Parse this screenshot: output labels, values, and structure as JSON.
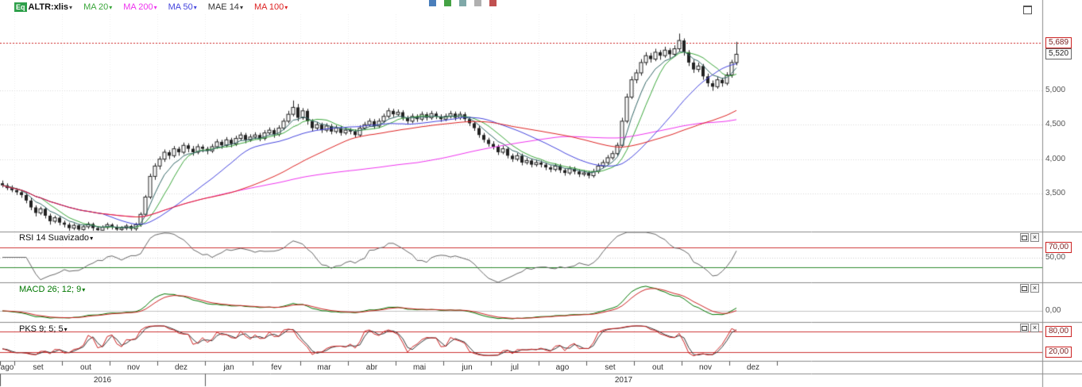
{
  "toolbar": {
    "instrument_type": "Eq",
    "ticker": "ALTR:xlis",
    "indicators": [
      {
        "label": "MA 20",
        "color": "#3aa63a"
      },
      {
        "label": "MA 200",
        "color": "#ee33ee"
      },
      {
        "label": "MA 50",
        "color": "#4444dd"
      },
      {
        "label": "MAE 14",
        "color": "#333333"
      },
      {
        "label": "MA 100",
        "color": "#dd2222"
      }
    ],
    "mini_icons": [
      "#4a7ebb",
      "#44a244",
      "#7fa8a8",
      "#b0b0b0",
      "#c05050"
    ]
  },
  "panels": {
    "rsi": {
      "title": "RSI 14 Suavizado"
    },
    "macd": {
      "title": "MACD 26; 12; 9"
    },
    "pks": {
      "title": "PKS 9; 5; 5"
    }
  },
  "price_axis": {
    "alert": {
      "label": "5,689",
      "value": 5.689
    },
    "last": {
      "label": "5,520",
      "value": 5.52
    },
    "gridlines": [
      {
        "label": "5,000",
        "value": 5.0
      },
      {
        "label": "4,500",
        "value": 4.5
      },
      {
        "label": "4,000",
        "value": 4.0
      },
      {
        "label": "3,500",
        "value": 3.5
      }
    ]
  },
  "axis": {
    "months": [
      "ago",
      "set",
      "out",
      "nov",
      "dez",
      "jan",
      "fev",
      "mar",
      "abr",
      "mai",
      "jun",
      "jul",
      "ago",
      "set",
      "out",
      "nov",
      "dez"
    ],
    "years": [
      "2016",
      "2017"
    ]
  },
  "chart_data": {
    "type": "candlestick",
    "title": "ALTR:xlis",
    "x_axis": {
      "months": [
        "ago 2016",
        "set",
        "out",
        "nov",
        "dez",
        "jan 2017",
        "fev",
        "mar",
        "abr",
        "mai",
        "jun",
        "jul",
        "ago",
        "set",
        "out",
        "nov",
        "dez"
      ]
    },
    "y_axis": {
      "ticks": [
        3.5,
        4.0,
        4.5,
        5.0
      ],
      "range": [
        2.95,
        6.1
      ]
    },
    "alert_level": 5.689,
    "last_price": 5.52,
    "candles": [
      [
        3.65,
        3.69,
        3.59,
        3.62
      ],
      [
        3.62,
        3.65,
        3.55,
        3.58
      ],
      [
        3.58,
        3.62,
        3.52,
        3.55
      ],
      [
        3.55,
        3.58,
        3.48,
        3.52
      ],
      [
        3.52,
        3.55,
        3.44,
        3.48
      ],
      [
        3.48,
        3.51,
        3.36,
        3.4
      ],
      [
        3.4,
        3.44,
        3.26,
        3.3
      ],
      [
        3.3,
        3.33,
        3.17,
        3.22
      ],
      [
        3.22,
        3.31,
        3.19,
        3.28
      ],
      [
        3.28,
        3.3,
        3.14,
        3.18
      ],
      [
        3.18,
        3.21,
        3.05,
        3.1
      ],
      [
        3.1,
        3.18,
        3.07,
        3.15
      ],
      [
        3.15,
        3.17,
        3.04,
        3.08
      ],
      [
        3.08,
        3.11,
        3.01,
        3.05
      ],
      [
        3.05,
        3.08,
        2.96,
        3.0
      ],
      [
        3.0,
        3.07,
        2.97,
        3.04
      ],
      [
        3.04,
        3.06,
        2.94,
        2.98
      ],
      [
        2.98,
        3.05,
        2.95,
        3.02
      ],
      [
        3.02,
        3.09,
        2.99,
        3.06
      ],
      [
        3.06,
        3.08,
        2.96,
        3.0
      ],
      [
        3.0,
        3.03,
        2.93,
        2.97
      ],
      [
        2.97,
        3.04,
        2.94,
        3.01
      ],
      [
        3.01,
        3.08,
        2.98,
        3.05
      ],
      [
        3.05,
        3.07,
        2.98,
        3.02
      ],
      [
        3.02,
        3.05,
        2.94,
        2.98
      ],
      [
        2.98,
        3.03,
        2.95,
        3.0
      ],
      [
        3.0,
        3.06,
        2.97,
        3.03
      ],
      [
        3.03,
        3.05,
        2.95,
        2.99
      ],
      [
        2.99,
        3.08,
        2.96,
        3.05
      ],
      [
        3.05,
        3.23,
        3.02,
        3.2
      ],
      [
        3.2,
        3.48,
        3.17,
        3.45
      ],
      [
        3.45,
        3.79,
        3.42,
        3.75
      ],
      [
        3.75,
        3.94,
        3.7,
        3.9
      ],
      [
        3.9,
        4.04,
        3.85,
        4.0
      ],
      [
        4.0,
        4.14,
        3.96,
        4.1
      ],
      [
        4.1,
        4.13,
        4.0,
        4.05
      ],
      [
        4.05,
        4.19,
        4.02,
        4.15
      ],
      [
        4.15,
        4.18,
        4.05,
        4.1
      ],
      [
        4.1,
        4.24,
        4.07,
        4.2
      ],
      [
        4.2,
        4.23,
        4.1,
        4.15
      ],
      [
        4.15,
        4.19,
        4.05,
        4.1
      ],
      [
        4.1,
        4.22,
        4.07,
        4.18
      ],
      [
        4.18,
        4.21,
        4.1,
        4.15
      ],
      [
        4.15,
        4.18,
        4.07,
        4.12
      ],
      [
        4.12,
        4.22,
        4.09,
        4.18
      ],
      [
        4.18,
        4.29,
        4.15,
        4.25
      ],
      [
        4.25,
        4.28,
        4.15,
        4.2
      ],
      [
        4.2,
        4.32,
        4.17,
        4.28
      ],
      [
        4.28,
        4.31,
        4.17,
        4.22
      ],
      [
        4.22,
        4.34,
        4.19,
        4.3
      ],
      [
        4.3,
        4.39,
        4.27,
        4.35
      ],
      [
        4.35,
        4.38,
        4.23,
        4.28
      ],
      [
        4.28,
        4.36,
        4.25,
        4.32
      ],
      [
        4.32,
        4.39,
        4.29,
        4.35
      ],
      [
        4.35,
        4.38,
        4.26,
        4.3
      ],
      [
        4.3,
        4.42,
        4.27,
        4.38
      ],
      [
        4.38,
        4.46,
        4.35,
        4.42
      ],
      [
        4.42,
        4.45,
        4.31,
        4.36
      ],
      [
        4.36,
        4.49,
        4.33,
        4.45
      ],
      [
        4.45,
        4.59,
        4.42,
        4.55
      ],
      [
        4.55,
        4.7,
        4.52,
        4.65
      ],
      [
        4.65,
        4.85,
        4.62,
        4.75
      ],
      [
        4.75,
        4.8,
        4.55,
        4.6
      ],
      [
        4.6,
        4.74,
        4.57,
        4.7
      ],
      [
        4.7,
        4.73,
        4.5,
        4.55
      ],
      [
        4.55,
        4.58,
        4.4,
        4.45
      ],
      [
        4.45,
        4.54,
        4.42,
        4.5
      ],
      [
        4.5,
        4.53,
        4.38,
        4.42
      ],
      [
        4.42,
        4.52,
        4.39,
        4.48
      ],
      [
        4.48,
        4.51,
        4.36,
        4.4
      ],
      [
        4.4,
        4.49,
        4.37,
        4.45
      ],
      [
        4.45,
        4.48,
        4.34,
        4.38
      ],
      [
        4.38,
        4.46,
        4.35,
        4.42
      ],
      [
        4.42,
        4.45,
        4.36,
        4.4
      ],
      [
        4.4,
        4.43,
        4.31,
        4.35
      ],
      [
        4.35,
        4.49,
        4.32,
        4.45
      ],
      [
        4.45,
        4.54,
        4.42,
        4.5
      ],
      [
        4.5,
        4.59,
        4.47,
        4.55
      ],
      [
        4.55,
        4.58,
        4.44,
        4.48
      ],
      [
        4.48,
        4.59,
        4.45,
        4.55
      ],
      [
        4.55,
        4.66,
        4.52,
        4.62
      ],
      [
        4.62,
        4.74,
        4.59,
        4.7
      ],
      [
        4.7,
        4.73,
        4.61,
        4.65
      ],
      [
        4.65,
        4.72,
        4.62,
        4.68
      ],
      [
        4.68,
        4.71,
        4.56,
        4.6
      ],
      [
        4.6,
        4.63,
        4.51,
        4.55
      ],
      [
        4.55,
        4.66,
        4.52,
        4.62
      ],
      [
        4.62,
        4.65,
        4.54,
        4.58
      ],
      [
        4.58,
        4.69,
        4.55,
        4.65
      ],
      [
        4.65,
        4.68,
        4.56,
        4.6
      ],
      [
        4.6,
        4.7,
        4.57,
        4.66
      ],
      [
        4.66,
        4.69,
        4.58,
        4.62
      ],
      [
        4.62,
        4.65,
        4.54,
        4.58
      ],
      [
        4.58,
        4.66,
        4.55,
        4.62
      ],
      [
        4.62,
        4.7,
        4.59,
        4.66
      ],
      [
        4.66,
        4.69,
        4.56,
        4.6
      ],
      [
        4.6,
        4.69,
        4.57,
        4.65
      ],
      [
        4.65,
        4.68,
        4.54,
        4.58
      ],
      [
        4.58,
        4.61,
        4.48,
        4.52
      ],
      [
        4.52,
        4.55,
        4.41,
        4.45
      ],
      [
        4.45,
        4.48,
        4.31,
        4.35
      ],
      [
        4.35,
        4.38,
        4.24,
        4.28
      ],
      [
        4.28,
        4.31,
        4.18,
        4.22
      ],
      [
        4.22,
        4.26,
        4.14,
        4.18
      ],
      [
        4.18,
        4.21,
        4.06,
        4.1
      ],
      [
        4.1,
        4.19,
        4.07,
        4.15
      ],
      [
        4.15,
        4.18,
        4.01,
        4.05
      ],
      [
        4.05,
        4.08,
        3.96,
        4.0
      ],
      [
        4.0,
        4.09,
        3.97,
        4.05
      ],
      [
        4.05,
        4.08,
        3.91,
        3.95
      ],
      [
        3.95,
        4.02,
        3.92,
        3.98
      ],
      [
        3.98,
        4.01,
        3.88,
        3.92
      ],
      [
        3.92,
        3.99,
        3.89,
        3.95
      ],
      [
        3.95,
        3.98,
        3.88,
        3.92
      ],
      [
        3.92,
        3.95,
        3.84,
        3.88
      ],
      [
        3.88,
        3.91,
        3.81,
        3.85
      ],
      [
        3.85,
        3.94,
        3.82,
        3.9
      ],
      [
        3.9,
        3.93,
        3.8,
        3.84
      ],
      [
        3.84,
        3.87,
        3.76,
        3.8
      ],
      [
        3.8,
        3.9,
        3.77,
        3.86
      ],
      [
        3.86,
        3.89,
        3.78,
        3.82
      ],
      [
        3.82,
        3.85,
        3.74,
        3.78
      ],
      [
        3.78,
        3.84,
        3.75,
        3.8
      ],
      [
        3.8,
        3.83,
        3.72,
        3.76
      ],
      [
        3.76,
        3.86,
        3.73,
        3.82
      ],
      [
        3.82,
        3.94,
        3.79,
        3.9
      ],
      [
        3.9,
        3.99,
        3.87,
        3.95
      ],
      [
        3.95,
        4.06,
        3.92,
        4.02
      ],
      [
        4.02,
        4.12,
        3.99,
        4.08
      ],
      [
        4.08,
        4.24,
        4.05,
        4.2
      ],
      [
        4.2,
        4.6,
        4.17,
        4.55
      ],
      [
        4.55,
        4.95,
        4.52,
        4.9
      ],
      [
        4.9,
        5.2,
        4.87,
        5.15
      ],
      [
        5.15,
        5.3,
        5.1,
        5.25
      ],
      [
        5.25,
        5.45,
        5.21,
        5.4
      ],
      [
        5.4,
        5.55,
        5.36,
        5.5
      ],
      [
        5.5,
        5.54,
        5.4,
        5.45
      ],
      [
        5.45,
        5.6,
        5.42,
        5.55
      ],
      [
        5.55,
        5.58,
        5.44,
        5.5
      ],
      [
        5.5,
        5.63,
        5.47,
        5.58
      ],
      [
        5.58,
        5.61,
        5.46,
        5.52
      ],
      [
        5.52,
        5.65,
        5.49,
        5.6
      ],
      [
        5.6,
        5.82,
        5.56,
        5.72
      ],
      [
        5.72,
        5.75,
        5.5,
        5.55
      ],
      [
        5.55,
        5.58,
        5.35,
        5.4
      ],
      [
        5.4,
        5.44,
        5.25,
        5.3
      ],
      [
        5.3,
        5.4,
        5.26,
        5.35
      ],
      [
        5.35,
        5.38,
        5.15,
        5.2
      ],
      [
        5.2,
        5.24,
        5.05,
        5.1
      ],
      [
        5.1,
        5.14,
        4.99,
        5.05
      ],
      [
        5.05,
        5.19,
        5.02,
        5.15
      ],
      [
        5.15,
        5.18,
        5.05,
        5.1
      ],
      [
        5.1,
        5.26,
        5.07,
        5.22
      ],
      [
        5.22,
        5.44,
        5.18,
        5.4
      ],
      [
        5.4,
        5.7,
        5.36,
        5.52
      ]
    ],
    "overlays": [
      {
        "name": "MA 20",
        "type": "sma",
        "period": 20,
        "period_bars": 9,
        "color": "#3aa63a"
      },
      {
        "name": "MA 200",
        "type": "sma",
        "period": 200,
        "period_bars": 88,
        "color": "#ee33ee"
      },
      {
        "name": "MA 50",
        "type": "sma",
        "period": 50,
        "period_bars": 22,
        "color": "#4444dd"
      },
      {
        "name": "MAE 14",
        "type": "ema",
        "period": 14,
        "period_bars": 6,
        "color": "#336666"
      },
      {
        "name": "MA 100",
        "type": "sma",
        "period": 100,
        "period_bars": 44,
        "color": "#dd2222"
      }
    ],
    "sub_panels": [
      {
        "name": "RSI",
        "params": "14 Suavizado",
        "period_bars": 6,
        "smooth_bars": 3,
        "color": "#666666",
        "levels": [
          {
            "value": 70,
            "label": "70,00",
            "color": "#cc3333",
            "style": "solid",
            "badge": true
          },
          {
            "value": 50,
            "label": "50,00",
            "color": "#cccccc",
            "style": "dotted",
            "badge": false
          },
          {
            "value": 30,
            "label": "",
            "color": "#2e8b2e",
            "style": "solid",
            "badge": false
          }
        ]
      },
      {
        "name": "MACD",
        "params": "26; 12; 9",
        "fast_bars": 5,
        "slow_bars": 12,
        "signal_bars": 4,
        "colors": [
          "#007700",
          "#cc2222"
        ],
        "levels": [
          {
            "value": 0,
            "label": "0,00",
            "color": "#c0c0c0",
            "style": "solid",
            "badge": false
          }
        ]
      },
      {
        "name": "PKS",
        "params": "9; 5; 5",
        "k_bars": 4,
        "smooth_bars": 2,
        "d_bars": 2,
        "colors": [
          "#cc2222",
          "#333333"
        ],
        "levels": [
          {
            "value": 80,
            "label": "80,00",
            "color": "#cc3333",
            "style": "solid",
            "badge": true
          },
          {
            "value": 20,
            "label": "20,00",
            "color": "#cc3333",
            "style": "solid",
            "badge": true
          }
        ]
      }
    ]
  }
}
